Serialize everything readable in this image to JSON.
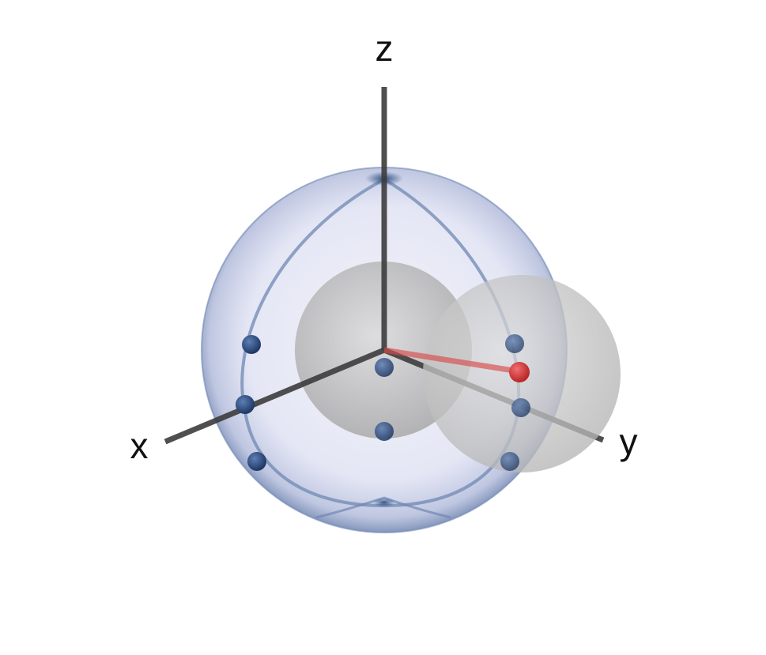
{
  "axes": {
    "x_label": "x",
    "y_label": "y",
    "z_label": "z"
  },
  "colors": {
    "bloch_sphere_fill": "#c9cbe8",
    "bloch_sphere_edge": "#5b73a0",
    "great_circle": "#6f88b3",
    "axis": "#3c3c3c",
    "inner_sphere": "#9e9e9e",
    "state_point": "#2c4c7e",
    "state_vector": "#d94a4a"
  },
  "icons": {
    "bloch_sphere": "transparent-sphere",
    "inner_spheres": "grey-sphere"
  }
}
